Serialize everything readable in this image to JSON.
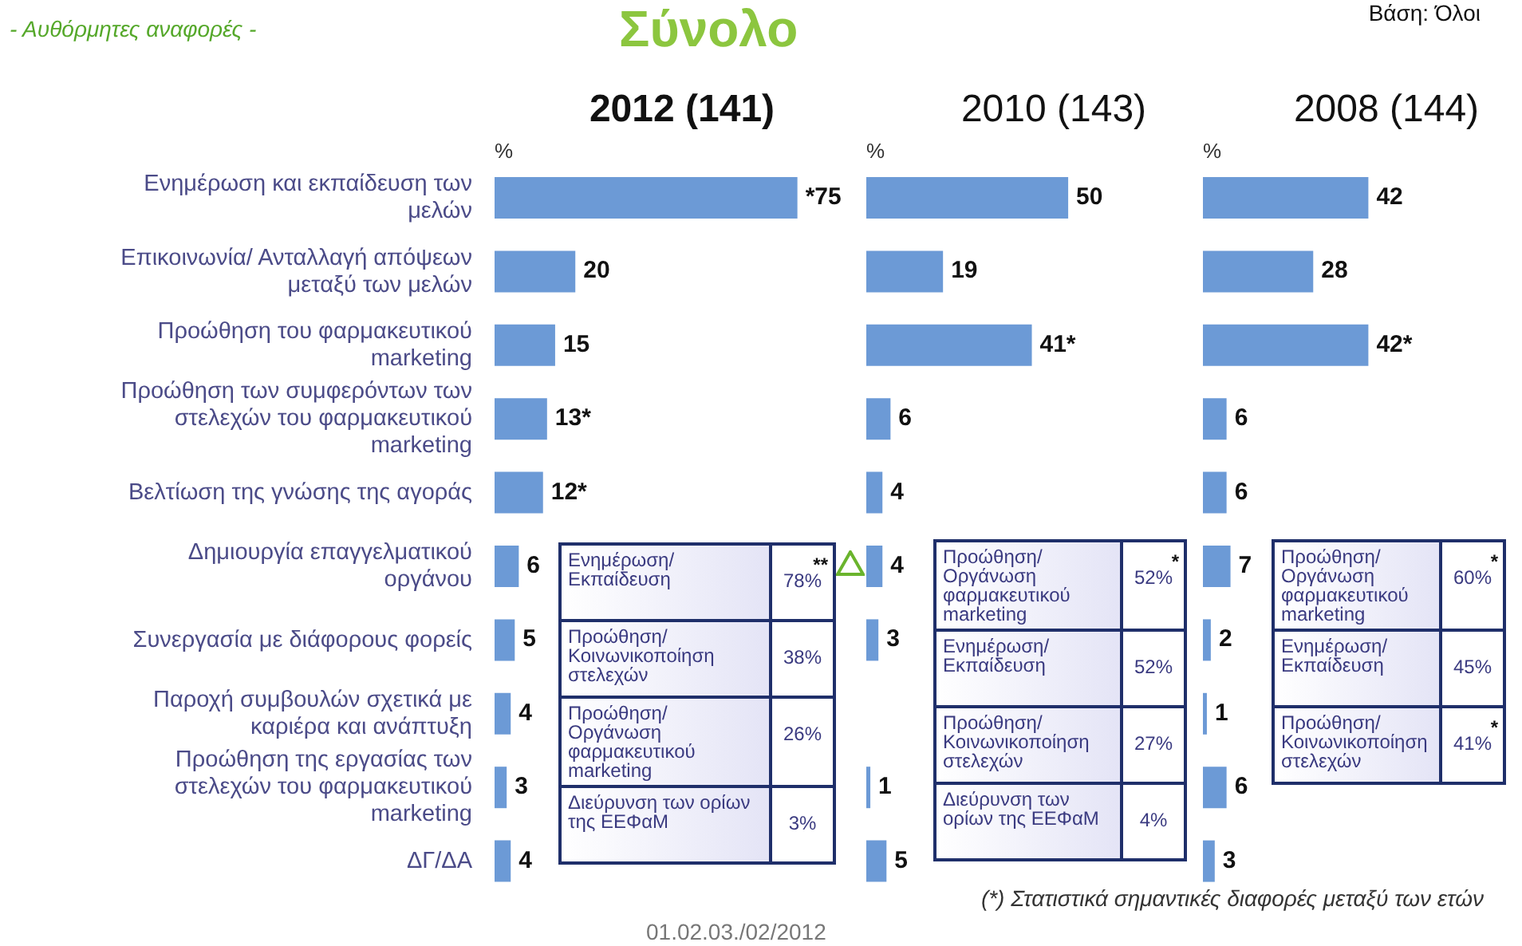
{
  "chart_data": [
    {
      "type": "other",
      "title": "Σύνολο",
      "subtitle": "- Αυθόρμητες αναφορές -",
      "annotations": [
        "Βάση: Όλοι",
        "(*) Στατιστικά σημαντικές διαφορές μεταξύ των ετών",
        "01.02.03./02/2012"
      ]
    },
    {
      "type": "bar",
      "orientation": "horizontal",
      "title": "2012 (141)",
      "xlabel": "%",
      "tick_labels": "y",
      "color": "#6c9ad6",
      "categories": [
        "Ενημέρωση και εκπαίδευση των μελών",
        "Επικοινωνία/ Ανταλλαγή απόψεων μεταξύ των μελών",
        "Προώθηση του φαρμακευτικού marketing",
        "Προώθηση των συμφερόντων των στελεχών του φαρμακευτικού marketing",
        "Βελτίωση της γνώσης της αγοράς",
        "Δημιουργία επαγγελματικού οργάνου",
        "Συνεργασία με διάφορους φορείς",
        "Παροχή συμβουλών σχετικά με καριέρα και ανάπτυξη",
        "Προώθηση της εργασίας των στελεχών του φαρμακευτικού marketing",
        "ΔΓ/ΔΑ"
      ],
      "values": [
        75,
        20,
        15,
        13,
        12,
        6,
        5,
        4,
        3,
        4
      ],
      "value_labels": [
        "*75",
        "20",
        "15",
        "13*",
        "12*",
        "6",
        "5",
        "4",
        "3",
        "4"
      ]
    },
    {
      "type": "other",
      "annotations": [
        "Ενημέρωση/ Εκπαίδευση",
        "**78%",
        "Προώθηση/ Κοινωνικοποίηση στελεχών",
        "38%",
        "Προώθηση/ Οργάνωση φαρμακευτικού marketing",
        "26%",
        "Διεύρυνση των ορίων της ΕΕΦαΜ",
        "3%"
      ]
    },
    {
      "type": "bar",
      "orientation": "horizontal",
      "title": "2010 (143)",
      "xlabel": "%",
      "tick_labels": false,
      "color": "#6c9ad6",
      "categories": [
        null,
        null,
        null,
        null,
        null,
        null,
        null,
        null,
        null,
        null
      ],
      "values": [
        50,
        19,
        41,
        6,
        4,
        4,
        3,
        null,
        1,
        5
      ],
      "value_labels": [
        "50",
        "19",
        "41*",
        "6",
        "4",
        "4",
        "3",
        null,
        "1",
        "5"
      ]
    },
    {
      "type": "other",
      "annotations": [
        "Προώθηση/ Οργάνωση φαρμακευτικού marketing",
        "*52%",
        "Ενημέρωση/ Εκπαίδευση",
        "52%",
        "Προώθηση/ Κοινωνικοποίηση στελεχών",
        "27%",
        "Διεύρυνση των ορίων της ΕΕΦαΜ",
        "4%"
      ]
    },
    {
      "type": "bar",
      "orientation": "horizontal",
      "title": "2008 (144)",
      "xlabel": "%",
      "tick_labels": false,
      "color": "#6c9ad6",
      "categories": [
        null,
        null,
        null,
        null,
        null,
        null,
        null,
        null,
        null,
        null
      ],
      "values": [
        42,
        28,
        42,
        6,
        6,
        7,
        2,
        1,
        6,
        3
      ],
      "value_labels": [
        "42",
        "28",
        "42*",
        "6",
        "6",
        "7",
        "2",
        "1",
        "6",
        "3"
      ]
    },
    {
      "type": "other",
      "annotations": [
        "Προώθηση/ Οργάνωση φαρμακευτικού marketing",
        "*60%",
        "Ενημέρωση/ Εκπαίδευση",
        "45%",
        "Προώθηση/ Κοινωνικοποίηση στελεχών",
        "*41%"
      ]
    }
  ]
}
